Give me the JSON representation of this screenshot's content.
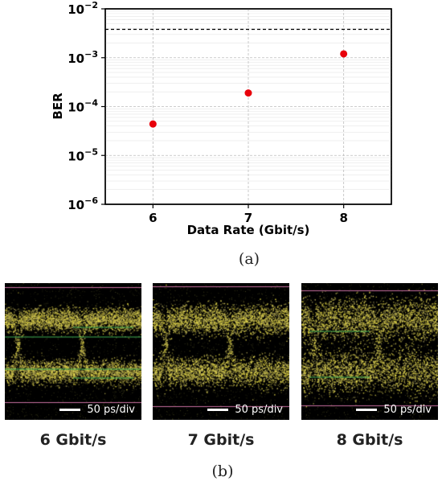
{
  "chart_data": {
    "type": "scatter",
    "xlabel": "Data Rate (Gbit/s)",
    "ylabel": "BER",
    "x_ticks": [
      6,
      7,
      8
    ],
    "xlim": [
      5.5,
      8.5
    ],
    "y_scale": "log",
    "ylim": [
      1e-06,
      0.01
    ],
    "y_tick_exponents": [
      "-6",
      "-5",
      "-4",
      "-3",
      "-2"
    ],
    "y_tick_base": "10",
    "grid": true,
    "points": [
      {
        "x": 6,
        "y": 4.4e-05
      },
      {
        "x": 7,
        "y": 0.00019
      },
      {
        "x": 8,
        "y": 0.0012
      }
    ],
    "threshold": 0.0038,
    "marker_color": "#e8000b",
    "threshold_color": "#000000"
  },
  "captions": {
    "a": "(a)",
    "b": "(b)"
  },
  "eyes": [
    {
      "label": "6 Gbit/s",
      "scale": "50 ps/div"
    },
    {
      "label": "7 Gbit/s",
      "scale": "50 ps/div"
    },
    {
      "label": "8 Gbit/s",
      "scale": "50 ps/div"
    }
  ]
}
